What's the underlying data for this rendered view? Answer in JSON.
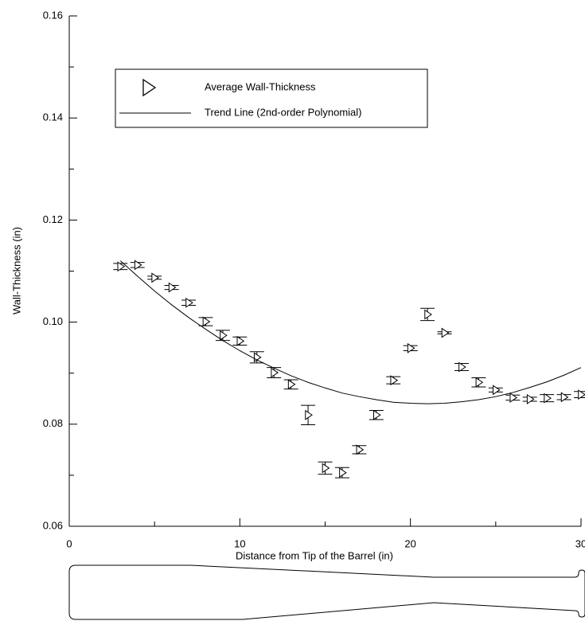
{
  "chart_data": {
    "type": "scatter",
    "xlabel": "Distance from Tip of the Barrel (in)",
    "ylabel": "Wall-Thickness (in)",
    "xlim": [
      0,
      30
    ],
    "xticks": [
      0,
      10,
      20,
      30
    ],
    "xminorticks": [
      5,
      15,
      25
    ],
    "ylim": [
      0.06,
      0.16
    ],
    "yticks": [
      0.06,
      0.08,
      {
        "value": 0.1,
        "label": "0.10"
      },
      0.12,
      0.14,
      0.16
    ],
    "yminorticks": [
      0.07,
      0.09,
      0.11,
      0.13,
      0.15
    ],
    "legend": "upper left",
    "series": [
      {
        "name": "Average Wall-Thickness",
        "kind": "marker",
        "color": "#000000",
        "x": [
          3,
          4,
          5,
          6,
          7,
          8,
          9,
          10,
          11,
          12,
          13,
          14,
          15,
          16,
          17,
          18,
          19,
          20,
          21,
          22,
          23,
          24,
          25,
          26,
          27,
          28,
          29,
          30
        ],
        "values": [
          0.1109,
          0.1112,
          0.1087,
          0.1068,
          0.1038,
          0.1001,
          0.0974,
          0.0963,
          0.0931,
          0.0901,
          0.0878,
          0.0818,
          0.0714,
          0.0705,
          0.075,
          0.0818,
          0.0886,
          0.0949,
          0.1015,
          0.0979,
          0.0912,
          0.0882,
          0.0867,
          0.0852,
          0.0849,
          0.0851,
          0.0853,
          0.0858
        ],
        "errors": [
          0.0006,
          0.0005,
          0.0003,
          0.0004,
          0.0005,
          0.0008,
          0.001,
          0.0008,
          0.0011,
          0.001,
          0.0009,
          0.0019,
          0.0012,
          0.001,
          0.0008,
          0.0009,
          0.0007,
          0.0005,
          0.0012,
          0.0002,
          0.0007,
          0.0009,
          0.0004,
          0.0005,
          0.0004,
          0.0007,
          0.0005,
          0.0006
        ]
      },
      {
        "name": "Trend Line (2nd-order Polynomial)",
        "kind": "line",
        "color": "#000000",
        "x": [
          3,
          4,
          5,
          6,
          7,
          8,
          9,
          10,
          11,
          12,
          13,
          14,
          15,
          16,
          17,
          18,
          19,
          20,
          21,
          22,
          23,
          24,
          25,
          26,
          27,
          28,
          29,
          30
        ],
        "values": [
          0.112,
          0.109,
          0.1061,
          0.1034,
          0.1009,
          0.0986,
          0.0964,
          0.0944,
          0.0926,
          0.091,
          0.0895,
          0.0882,
          0.0871,
          0.0861,
          0.0854,
          0.0848,
          0.0843,
          0.0841,
          0.084,
          0.0841,
          0.0844,
          0.0848,
          0.0854,
          0.0862,
          0.0872,
          0.0883,
          0.0896,
          0.0911
        ]
      }
    ]
  }
}
